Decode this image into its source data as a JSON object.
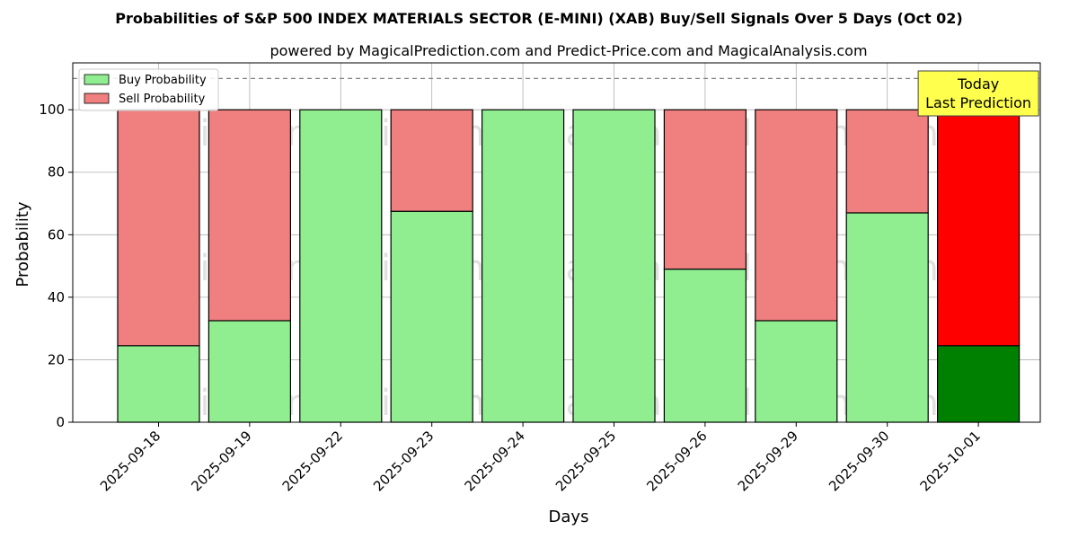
{
  "chart_data": {
    "type": "bar",
    "title": "Probabilities of S&P 500 INDEX MATERIALS SECTOR (E-MINI) (XAB) Buy/Sell Signals Over 5 Days (Oct 02)",
    "subtitle": "powered by MagicalPrediction.com and Predict-Price.com and MagicalAnalysis.com",
    "xlabel": "Days",
    "ylabel": "Probability",
    "ylim": [
      0,
      115
    ],
    "yticks": [
      0,
      20,
      40,
      60,
      80,
      100
    ],
    "categories": [
      "2025-09-18",
      "2025-09-19",
      "2025-09-22",
      "2025-09-23",
      "2025-09-24",
      "2025-09-25",
      "2025-09-26",
      "2025-09-29",
      "2025-09-30",
      "2025-10-01"
    ],
    "series": [
      {
        "name": "Buy Probability",
        "values": [
          24.5,
          32.5,
          100,
          67.5,
          100,
          100,
          49,
          32.5,
          67,
          24.5
        ]
      },
      {
        "name": "Sell Probability",
        "values": [
          75.5,
          67.5,
          0,
          32.5,
          0,
          0,
          51,
          67.5,
          33,
          75.5
        ]
      }
    ],
    "stacked": true,
    "grid": true,
    "legend_position": "top-left",
    "threshold_line": 110,
    "annotation": {
      "lines": [
        "Today",
        "Last Prediction"
      ],
      "category": "2025-10-01"
    },
    "highlight_last": true,
    "colors": {
      "buy": "#90ee90",
      "sell": "#f08080",
      "buy_highlight": "#008000",
      "sell_highlight": "#ff0000",
      "annotation_bg": "#ffff4d",
      "grid": "#b0b0b0"
    },
    "watermarks": [
      "MagicalAnalysis.com",
      "MagicalPrediction.com"
    ]
  }
}
